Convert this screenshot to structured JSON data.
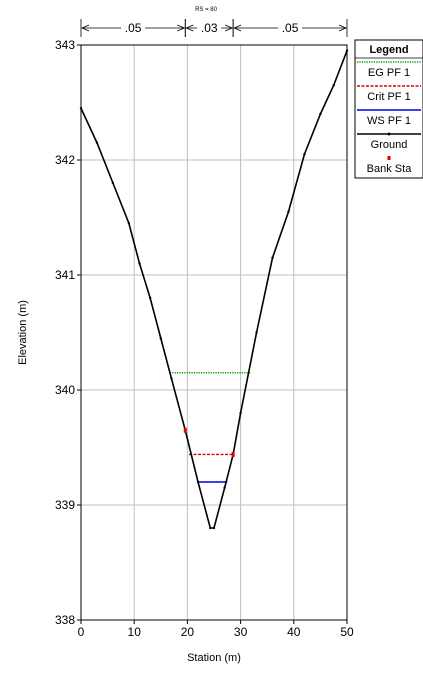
{
  "chart_data": {
    "type": "line",
    "title": "",
    "rs_label": "RS = 80",
    "xlabel": "Station (m)",
    "ylabel": "Elevation (m)",
    "xlim": [
      0,
      50
    ],
    "ylim": [
      338,
      343
    ],
    "x_ticks": [
      0,
      10,
      20,
      30,
      40,
      50
    ],
    "y_ticks": [
      338,
      339,
      340,
      341,
      342,
      343
    ],
    "grid": true,
    "manning": [
      {
        "from": 0,
        "to": 19.6,
        "label": ".05"
      },
      {
        "from": 19.6,
        "to": 28.6,
        "label": ".03"
      },
      {
        "from": 28.6,
        "to": 50,
        "label": ".05"
      }
    ],
    "series": [
      {
        "name": "EG PF 1",
        "color": "#00a000",
        "style": "dotted",
        "x": [
          16.7,
          31.9
        ],
        "y": [
          340.15,
          340.15
        ]
      },
      {
        "name": "Crit PF 1",
        "color": "#e00000",
        "style": "dashed",
        "x": [
          20.3,
          28.6
        ],
        "y": [
          339.44,
          339.44
        ]
      },
      {
        "name": "WS PF 1",
        "color": "#0000e0",
        "style": "solid",
        "x": [
          21.8,
          27.5
        ],
        "y": [
          339.2,
          339.2
        ]
      },
      {
        "name": "Ground",
        "color": "#000000",
        "style": "solid-markers",
        "x": [
          0,
          3,
          6,
          9,
          11,
          13,
          15,
          17,
          19.6,
          22,
          24.3,
          25,
          27,
          28.6,
          30,
          33,
          36,
          39,
          42,
          45,
          47.5,
          50
        ],
        "y": [
          342.45,
          342.15,
          341.8,
          341.45,
          341.1,
          340.8,
          340.45,
          340.1,
          339.65,
          339.2,
          338.8,
          338.8,
          339.15,
          339.44,
          339.8,
          340.5,
          341.15,
          341.55,
          342.05,
          342.4,
          342.65,
          342.95
        ]
      },
      {
        "name": "Bank Sta",
        "color": "#e00000",
        "style": "points",
        "x": [
          19.6,
          28.6
        ],
        "y": [
          339.65,
          339.44
        ]
      }
    ],
    "legend": {
      "title": "Legend",
      "position": "top-right",
      "entries": [
        {
          "label": "EG PF 1",
          "color": "#00a000",
          "style": "dotted"
        },
        {
          "label": "Crit PF 1",
          "color": "#e00000",
          "style": "dashed"
        },
        {
          "label": "WS PF 1",
          "color": "#0000e0",
          "style": "solid"
        },
        {
          "label": "Ground",
          "color": "#000000",
          "style": "solid-markers"
        },
        {
          "label": "Bank Sta",
          "color": "#e00000",
          "style": "points"
        }
      ]
    }
  }
}
